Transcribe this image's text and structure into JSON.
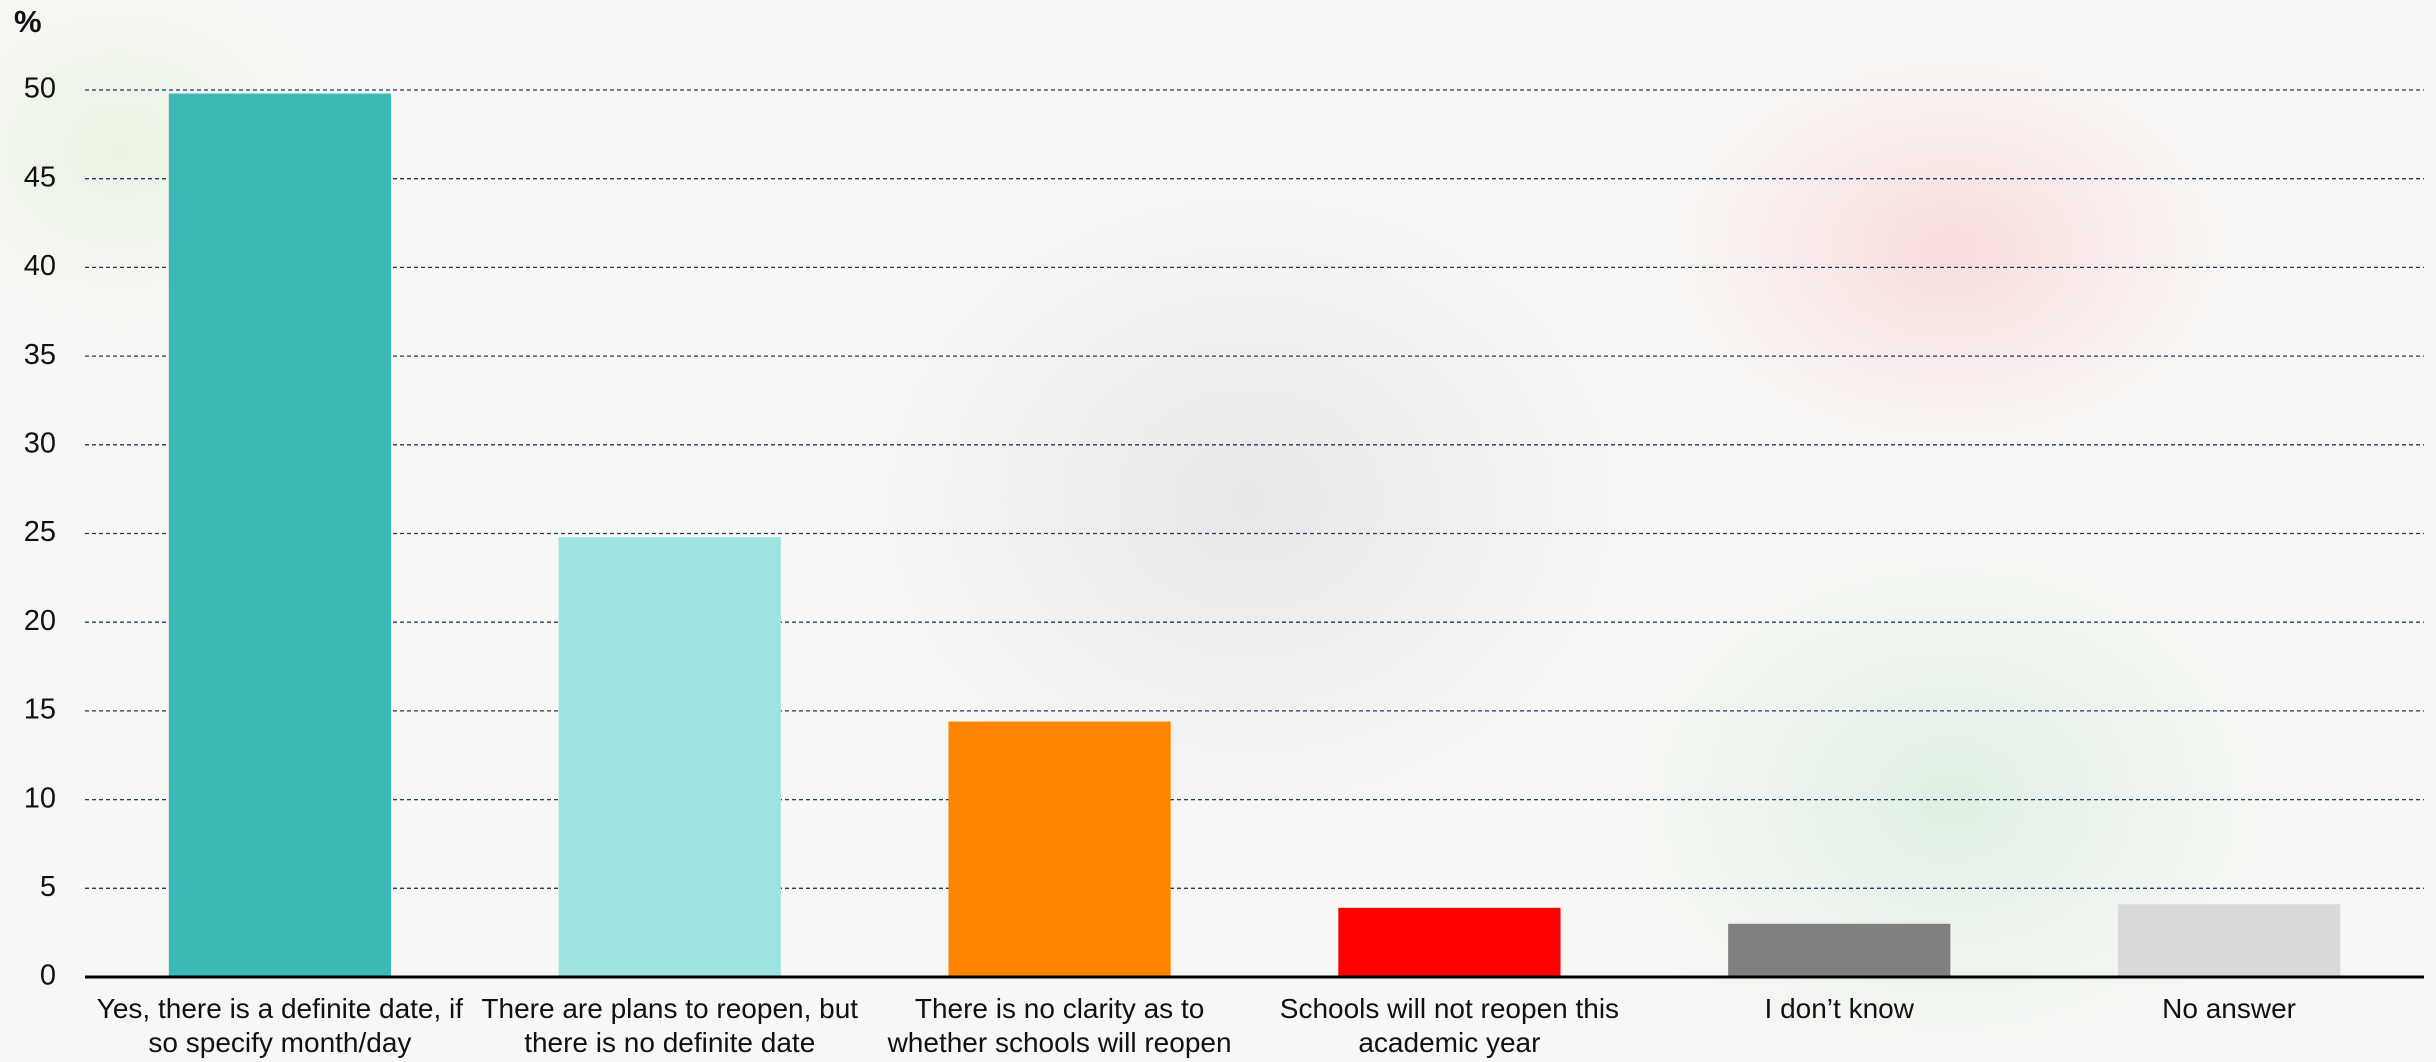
{
  "chart_data": {
    "type": "bar",
    "y_label": "%",
    "categories": [
      "Yes, there is a definite date, if so specify month/day",
      "There are plans to reopen, but there is no definite date",
      "There is no clarity as to whether schools will reopen",
      "Schools will not reopen this academic year",
      "I don’t know",
      "No answer"
    ],
    "values": [
      49.8,
      24.8,
      14.4,
      3.9,
      3.0,
      4.1
    ],
    "colors": [
      "#3cb8b6",
      "#9ee3df",
      "#ff8500",
      "#ff0000",
      "#808080",
      "#d9d9d9"
    ],
    "ylim": [
      0,
      50
    ],
    "yticks": [
      0,
      5,
      10,
      15,
      20,
      25,
      30,
      35,
      40,
      45,
      50
    ],
    "grid": true
  }
}
